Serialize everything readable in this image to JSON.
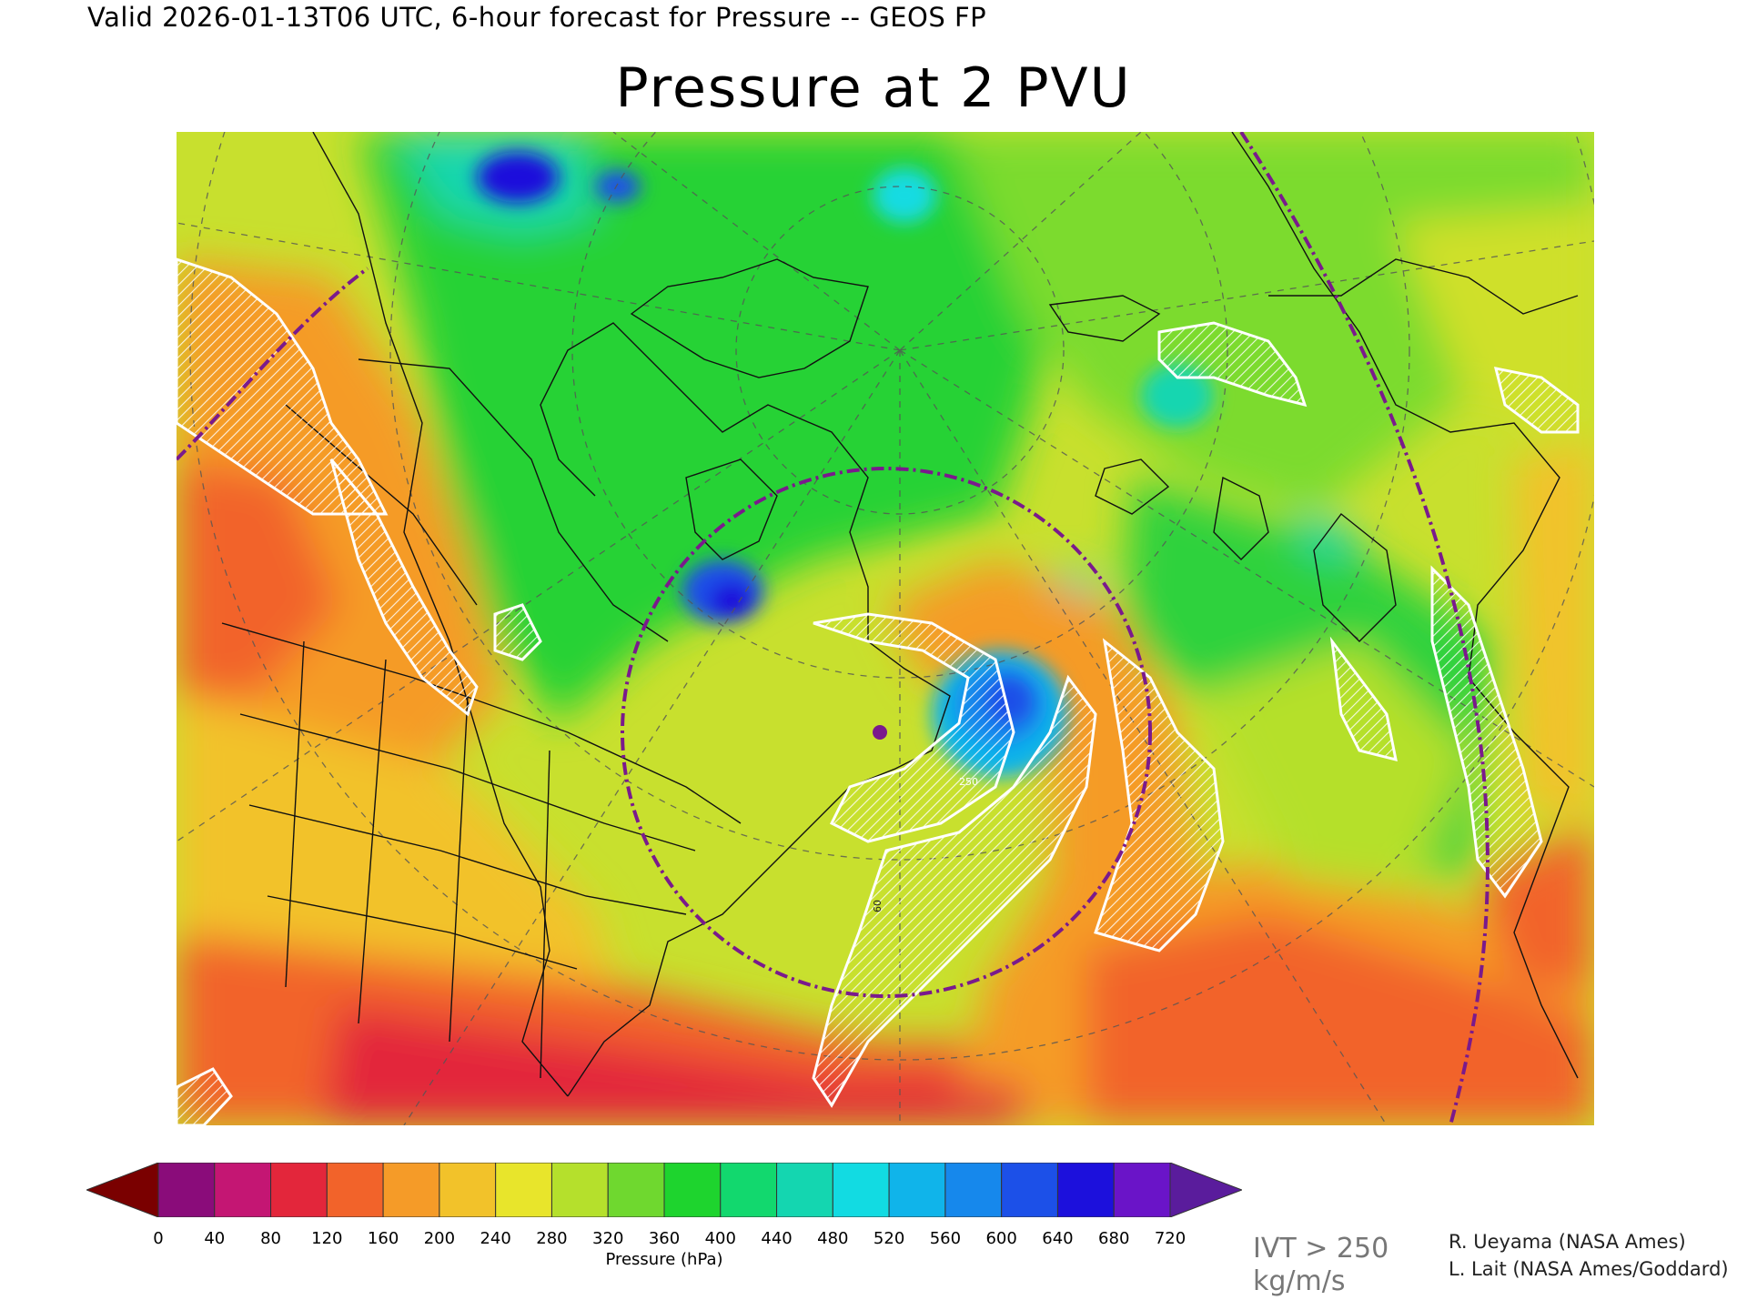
{
  "header": {
    "valid_line": "Valid 2026-01-13T06 UTC, 6-hour forecast for Pressure -- GEOS FP",
    "title": "Pressure at 2 PVU"
  },
  "map": {
    "projection": "polar stereographic",
    "region": "North America and North Atlantic",
    "meridian_label": "60",
    "contour_label": "250",
    "colors": {
      "ivt_hatch": "#ffffff",
      "border_lines": "#111111",
      "graticule": "#555555",
      "range_circle": "#7a1a8c",
      "marker": "#7a1a8c"
    }
  },
  "colorbar": {
    "label": "Pressure (hPa)",
    "ticks": [
      "0",
      "40",
      "80",
      "120",
      "160",
      "200",
      "240",
      "280",
      "320",
      "360",
      "400",
      "440",
      "480",
      "520",
      "560",
      "600",
      "640",
      "680",
      "720"
    ],
    "low_extend_color": "#7a0000",
    "high_extend_color": "#5a1c9c",
    "colors": [
      "#8a0c7a",
      "#c41673",
      "#e3263b",
      "#f2632a",
      "#f59b28",
      "#f2c22a",
      "#e8e52b",
      "#b5e02c",
      "#6fd82f",
      "#1ed42e",
      "#12d86e",
      "#14d6b0",
      "#12dbe2",
      "#10b4ea",
      "#1688ec",
      "#1c50e8",
      "#1c10dc",
      "#6a14c8"
    ]
  },
  "legend_note": {
    "line1": "IVT > 250",
    "line2": "kg/m/s"
  },
  "credits": {
    "line1": "R. Ueyama (NASA Ames)",
    "line2": "L. Lait (NASA Ames/Goddard)"
  }
}
